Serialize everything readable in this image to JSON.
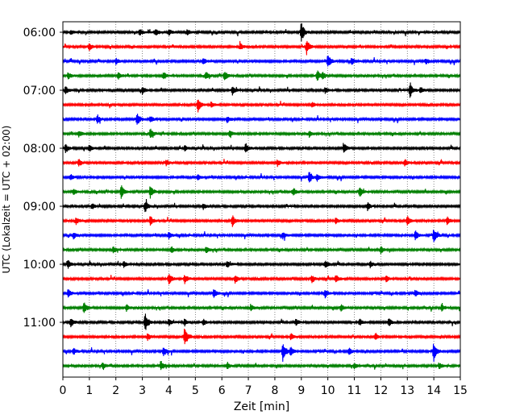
{
  "chart_data": {
    "type": "line",
    "plot_kind": "helicorder",
    "xlabel": "Zeit  [min]",
    "ylabel": "UTC (Lokalzeit = UTC + 02:00)",
    "xlim": [
      0,
      15
    ],
    "x_ticks": [
      "0",
      "1",
      "2",
      "3",
      "4",
      "5",
      "6",
      "7",
      "8",
      "9",
      "10",
      "11",
      "12",
      "13",
      "14",
      "15"
    ],
    "grid": "vertical dotted at each minute",
    "y_ticks": [
      {
        "label": "06:00",
        "trace_index": 0
      },
      {
        "label": "07:00",
        "trace_index": 4
      },
      {
        "label": "08:00",
        "trace_index": 8
      },
      {
        "label": "09:00",
        "trace_index": 12
      },
      {
        "label": "10:00",
        "trace_index": 16
      },
      {
        "label": "11:00",
        "trace_index": 20
      }
    ],
    "trace_minutes": 15,
    "trace_colors": [
      "#000000",
      "#ff0000",
      "#0000ff",
      "#008000"
    ],
    "traces": [
      {
        "start": "06:00",
        "events": [
          [
            9.0,
            3.2
          ],
          [
            0.3,
            0.7
          ],
          [
            2.9,
            1.0
          ],
          [
            3.5,
            1.0
          ],
          [
            4.0,
            0.9
          ],
          [
            4.7,
            0.9
          ]
        ]
      },
      {
        "start": "06:15",
        "events": [
          [
            9.2,
            2.2
          ],
          [
            1.0,
            1.0
          ],
          [
            6.7,
            0.9
          ]
        ]
      },
      {
        "start": "06:30",
        "events": [
          [
            10.0,
            2.2
          ],
          [
            5.3,
            0.9
          ],
          [
            2.0,
            0.9
          ],
          [
            10.9,
            1.0
          ],
          [
            13.7,
            1.0
          ]
        ]
      },
      {
        "start": "06:45",
        "events": [
          [
            0.2,
            1.1
          ],
          [
            2.1,
            1.0
          ],
          [
            3.8,
            1.1
          ],
          [
            5.4,
            1.2
          ],
          [
            6.1,
            1.6
          ],
          [
            9.6,
            1.6
          ],
          [
            9.8,
            1.0
          ]
        ]
      },
      {
        "start": "07:00",
        "events": [
          [
            13.1,
            2.5
          ],
          [
            6.4,
            1.3
          ],
          [
            0.1,
            1.1
          ],
          [
            3.0,
            1.1
          ],
          [
            9.9,
            0.9
          ],
          [
            13.5,
            1.0
          ]
        ]
      },
      {
        "start": "07:15",
        "events": [
          [
            5.1,
            2.1
          ],
          [
            5.6,
            0.8
          ],
          [
            9.4,
            0.8
          ]
        ]
      },
      {
        "start": "07:30",
        "events": [
          [
            2.8,
            1.8
          ],
          [
            1.3,
            1.1
          ],
          [
            3.3,
            1.0
          ],
          [
            6.2,
            0.9
          ]
        ]
      },
      {
        "start": "07:45",
        "events": [
          [
            3.3,
            1.6
          ],
          [
            0.6,
            0.9
          ],
          [
            6.3,
            1.0
          ],
          [
            9.3,
            0.9
          ]
        ]
      },
      {
        "start": "08:00",
        "events": [
          [
            0.1,
            1.3
          ],
          [
            6.9,
            1.4
          ],
          [
            10.6,
            1.5
          ],
          [
            4.6,
            0.9
          ],
          [
            1.0,
            1.0
          ]
        ]
      },
      {
        "start": "08:15",
        "events": [
          [
            0.6,
            1.1
          ],
          [
            3.9,
            1.0
          ],
          [
            8.1,
            0.9
          ],
          [
            12.9,
            1.0
          ]
        ]
      },
      {
        "start": "08:30",
        "events": [
          [
            9.3,
            1.8
          ],
          [
            0.3,
            0.9
          ],
          [
            5.1,
            0.9
          ],
          [
            9.6,
            1.1
          ]
        ]
      },
      {
        "start": "08:45",
        "events": [
          [
            2.2,
            2.0
          ],
          [
            3.3,
            1.8
          ],
          [
            11.2,
            1.6
          ],
          [
            0.4,
            0.9
          ],
          [
            8.7,
            1.1
          ]
        ]
      },
      {
        "start": "09:00",
        "events": [
          [
            3.1,
            1.8
          ],
          [
            5.3,
            0.9
          ],
          [
            11.5,
            1.2
          ],
          [
            1.1,
            0.9
          ]
        ]
      },
      {
        "start": "09:15",
        "events": [
          [
            3.3,
            1.4
          ],
          [
            6.4,
            1.7
          ],
          [
            13.0,
            1.4
          ],
          [
            14.5,
            1.4
          ],
          [
            0.5,
            1.0
          ],
          [
            10.3,
            0.9
          ]
        ]
      },
      {
        "start": "09:30",
        "events": [
          [
            14.0,
            2.2
          ],
          [
            13.3,
            1.5
          ],
          [
            0.4,
            1.0
          ],
          [
            4.0,
            1.0
          ],
          [
            8.3,
            1.0
          ]
        ]
      },
      {
        "start": "09:45",
        "events": [
          [
            4.1,
            1.0
          ],
          [
            5.4,
            1.0
          ],
          [
            1.9,
            0.9
          ],
          [
            12.0,
            1.0
          ]
        ]
      },
      {
        "start": "10:00",
        "events": [
          [
            0.2,
            1.2
          ],
          [
            2.3,
            1.0
          ],
          [
            6.2,
            1.0
          ],
          [
            9.9,
            1.2
          ],
          [
            11.6,
            1.0
          ]
        ]
      },
      {
        "start": "10:15",
        "events": [
          [
            4.0,
            1.9
          ],
          [
            4.6,
            1.3
          ],
          [
            6.5,
            1.2
          ],
          [
            9.4,
            1.1
          ],
          [
            10.3,
            1.1
          ],
          [
            12.2,
            1.0
          ]
        ]
      },
      {
        "start": "10:30",
        "events": [
          [
            0.2,
            1.2
          ],
          [
            5.7,
            1.3
          ],
          [
            9.9,
            1.2
          ],
          [
            13.3,
            1.0
          ]
        ]
      },
      {
        "start": "10:45",
        "events": [
          [
            0.8,
            1.8
          ],
          [
            2.4,
            1.0
          ],
          [
            7.1,
            0.9
          ],
          [
            10.5,
            1.0
          ],
          [
            14.3,
            1.0
          ]
        ]
      },
      {
        "start": "11:00",
        "events": [
          [
            3.1,
            3.0
          ],
          [
            0.3,
            1.4
          ],
          [
            4.0,
            1.0
          ],
          [
            4.6,
            1.1
          ],
          [
            5.3,
            1.0
          ],
          [
            8.8,
            1.0
          ],
          [
            11.2,
            1.0
          ],
          [
            12.3,
            1.2
          ]
        ]
      },
      {
        "start": "11:15",
        "events": [
          [
            4.6,
            3.2
          ],
          [
            3.2,
            1.0
          ],
          [
            8.6,
            1.0
          ],
          [
            11.8,
            1.1
          ]
        ]
      },
      {
        "start": "11:30",
        "events": [
          [
            8.3,
            3.0
          ],
          [
            14.0,
            2.8
          ],
          [
            3.8,
            1.3
          ],
          [
            0.4,
            0.9
          ],
          [
            8.6,
            1.2
          ],
          [
            10.8,
            1.0
          ]
        ]
      },
      {
        "start": "11:45",
        "events": [
          [
            3.7,
            1.6
          ],
          [
            1.5,
            0.9
          ],
          [
            6.2,
            0.9
          ],
          [
            11.0,
            0.9
          ],
          [
            14.2,
            1.0
          ]
        ]
      }
    ]
  }
}
